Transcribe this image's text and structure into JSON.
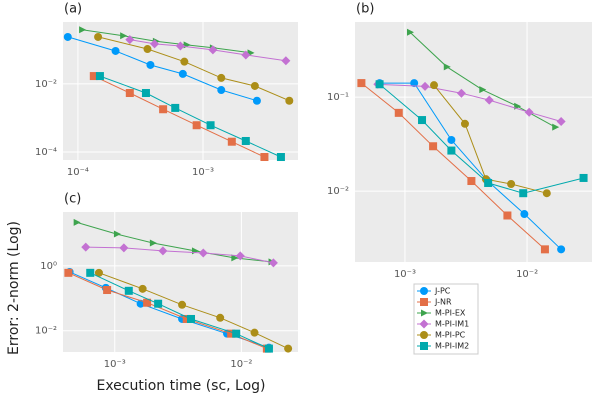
{
  "axis_labels": {
    "x": "Execution time (sc, Log)",
    "y": "Error: 2-norm (Log)"
  },
  "chart_data": [
    {
      "type": "line",
      "title": "(a)",
      "xlog": true,
      "ylog": true,
      "grid": true,
      "xlim": [
        7.6e-05,
        0.00575
      ],
      "ylim": [
        5.8e-05,
        0.66
      ],
      "xticks": [
        {
          "value": 0.0001,
          "label": "10⁻⁴"
        },
        {
          "value": 0.001,
          "label": "10⁻³"
        }
      ],
      "yticks": [
        {
          "value": 0.0001,
          "label": "10⁻⁴"
        },
        {
          "value": 0.01,
          "label": "10⁻²"
        }
      ],
      "series": [
        {
          "name": "J-PC",
          "color": "#009AFA",
          "marker": "circle",
          "x": [
            8.3e-05,
            0.0002,
            0.00038,
            0.00069,
            0.0014,
            0.0027
          ],
          "values": [
            0.24,
            0.093,
            0.036,
            0.0197,
            0.0066,
            0.0032
          ]
        },
        {
          "name": "J-NR",
          "color": "#E36F47",
          "marker": "square",
          "x": [
            0.000134,
            0.00026,
            0.00048,
            0.00089,
            0.0017,
            0.0031
          ],
          "values": [
            0.017,
            0.0054,
            0.0018,
            0.00061,
            0.0002,
            7.1e-05
          ]
        },
        {
          "name": "M-PI-EX",
          "color": "#3EA44E",
          "marker": "triangle",
          "x": [
            0.000108,
            0.00023,
            0.00042,
            0.00074,
            0.0012,
            0.0024
          ],
          "values": [
            0.39,
            0.26,
            0.18,
            0.14,
            0.115,
            0.082
          ]
        },
        {
          "name": "M-PI-IM1",
          "color": "#C371D2",
          "marker": "diamond",
          "x": [
            0.00026,
            0.00041,
            0.00066,
            0.0012,
            0.0022,
            0.0046
          ],
          "values": [
            0.2,
            0.15,
            0.13,
            0.1,
            0.071,
            0.048
          ]
        },
        {
          "name": "M-PI-PC",
          "color": "#AC8E18",
          "marker": "circle",
          "x": [
            0.000145,
            0.00036,
            0.00071,
            0.0014,
            0.0026,
            0.0049
          ],
          "values": [
            0.24,
            0.106,
            0.045,
            0.015,
            0.0087,
            0.0032
          ]
        },
        {
          "name": "M-PI-IM2",
          "color": "#00A9AD",
          "marker": "square",
          "x": [
            0.00015,
            0.00035,
            0.0006,
            0.00115,
            0.0022,
            0.0042
          ],
          "values": [
            0.017,
            0.0054,
            0.00197,
            0.00061,
            0.00021,
            7.1e-05
          ]
        }
      ]
    },
    {
      "type": "line",
      "title": "(b)",
      "xlog": true,
      "ylog": true,
      "grid": true,
      "legend": "below",
      "xlim": [
        0.00039,
        0.034
      ],
      "ylim": [
        0.00176,
        0.63
      ],
      "xticks": [
        {
          "value": 0.001,
          "label": "10⁻³"
        },
        {
          "value": 0.01,
          "label": "10⁻²"
        }
      ],
      "yticks": [
        {
          "value": 0.01,
          "label": "10⁻²"
        },
        {
          "value": 0.1,
          "label": "10⁻¹"
        }
      ],
      "series": [
        {
          "name": "J-PC",
          "color": "#009AFA",
          "marker": "circle",
          "x": [
            0.00062,
            0.00119,
            0.0024,
            0.0047,
            0.0095,
            0.019
          ],
          "values": [
            0.141,
            0.141,
            0.035,
            0.013,
            0.0057,
            0.0024
          ]
        },
        {
          "name": "J-NR",
          "color": "#E36F47",
          "marker": "square",
          "x": [
            0.00044,
            0.00089,
            0.0017,
            0.0035,
            0.0069,
            0.014
          ],
          "values": [
            0.141,
            0.068,
            0.03,
            0.0128,
            0.0055,
            0.0024
          ]
        },
        {
          "name": "M-PI-EX",
          "color": "#3EA44E",
          "marker": "triangle",
          "x": [
            0.0011,
            0.0022,
            0.0043,
            0.0083,
            0.017
          ],
          "values": [
            0.49,
            0.21,
            0.12,
            0.08,
            0.048
          ]
        },
        {
          "name": "M-PI-IM1",
          "color": "#C371D2",
          "marker": "diamond",
          "x": [
            0.0006,
            0.00146,
            0.0029,
            0.0049,
            0.0104,
            0.019
          ],
          "values": [
            0.137,
            0.13,
            0.11,
            0.093,
            0.069,
            0.055
          ]
        },
        {
          "name": "M-PI-PC",
          "color": "#AC8E18",
          "marker": "circle",
          "x": [
            0.00173,
            0.0031,
            0.0046,
            0.0074,
            0.0145
          ],
          "values": [
            0.134,
            0.052,
            0.0134,
            0.0119,
            0.0095
          ]
        },
        {
          "name": "M-PI-IM2",
          "color": "#00A9AD",
          "marker": "square",
          "x": [
            0.00062,
            0.00138,
            0.0024,
            0.0048,
            0.0093,
            0.029
          ],
          "values": [
            0.137,
            0.057,
            0.027,
            0.0122,
            0.0095,
            0.0138
          ]
        }
      ]
    },
    {
      "type": "line",
      "title": "(c)",
      "xlog": true,
      "ylog": true,
      "grid": true,
      "xlim": [
        0.00039,
        0.028
      ],
      "ylim": [
        0.0022,
        46
      ],
      "xticks": [
        {
          "value": 0.001,
          "label": "10⁻³"
        },
        {
          "value": 0.01,
          "label": "10⁻²"
        }
      ],
      "yticks": [
        {
          "value": 0.01,
          "label": "10⁻²"
        },
        {
          "value": 1,
          "label": "10⁰"
        }
      ],
      "series": [
        {
          "name": "J-PC",
          "color": "#009AFA",
          "marker": "circle",
          "x": [
            0.00044,
            0.00085,
            0.0016,
            0.0034,
            0.0077,
            0.0165
          ],
          "values": [
            0.65,
            0.21,
            0.068,
            0.023,
            0.0081,
            0.003
          ]
        },
        {
          "name": "J-NR",
          "color": "#E36F47",
          "marker": "square",
          "x": [
            0.00043,
            0.00087,
            0.0018,
            0.0037,
            0.0083,
            0.0159
          ],
          "values": [
            0.61,
            0.18,
            0.073,
            0.023,
            0.0081,
            0.0028
          ]
        },
        {
          "name": "M-PI-EX",
          "color": "#3EA44E",
          "marker": "triangle",
          "x": [
            0.0005,
            0.00104,
            0.002,
            0.0043,
            0.0088,
            0.0173
          ],
          "values": [
            22,
            9.6,
            5.1,
            2.9,
            1.76,
            1.33
          ]
        },
        {
          "name": "M-PI-IM1",
          "color": "#C371D2",
          "marker": "diamond",
          "x": [
            0.00059,
            0.00118,
            0.0024,
            0.005,
            0.0098,
            0.0179
          ],
          "values": [
            3.8,
            3.6,
            2.9,
            2.5,
            2.03,
            1.24
          ]
        },
        {
          "name": "M-PI-PC",
          "color": "#AC8E18",
          "marker": "circle",
          "x": [
            0.00075,
            0.00166,
            0.0034,
            0.0068,
            0.0127,
            0.0234
          ],
          "values": [
            0.61,
            0.196,
            0.063,
            0.025,
            0.0087,
            0.0028
          ]
        },
        {
          "name": "M-PI-IM2",
          "color": "#00A9AD",
          "marker": "square",
          "x": [
            0.00064,
            0.00129,
            0.0022,
            0.004,
            0.0091,
            0.0165
          ],
          "values": [
            0.61,
            0.17,
            0.068,
            0.023,
            0.0081,
            0.0028
          ]
        }
      ]
    }
  ]
}
